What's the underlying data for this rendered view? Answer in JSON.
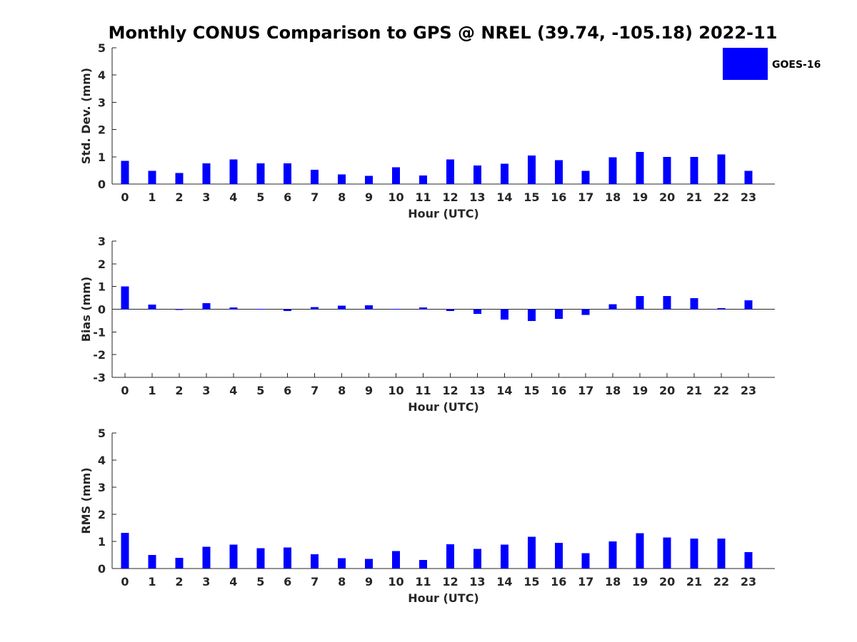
{
  "title": "Monthly CONUS Comparison to GPS @ NREL (39.74, -105.18) 2022-11",
  "legend": {
    "label": "GOES-16",
    "color": "#0000ff",
    "position": "top-right"
  },
  "colors": {
    "bar": "#0000ff",
    "axis": "#262626"
  },
  "chart_data": [
    {
      "type": "bar",
      "ylabel": "Std. Dev. (mm)",
      "xlabel": "Hour (UTC)",
      "ylim": [
        0,
        5
      ],
      "yticks": [
        0,
        1,
        2,
        3,
        4,
        5
      ],
      "categories": [
        "0",
        "1",
        "2",
        "3",
        "4",
        "5",
        "6",
        "7",
        "8",
        "9",
        "10",
        "11",
        "12",
        "13",
        "14",
        "15",
        "16",
        "17",
        "18",
        "19",
        "20",
        "21",
        "22",
        "23"
      ],
      "series": [
        {
          "name": "GOES-16",
          "values": [
            0.85,
            0.48,
            0.4,
            0.76,
            0.9,
            0.76,
            0.76,
            0.53,
            0.35,
            0.3,
            0.62,
            0.32,
            0.9,
            0.68,
            0.74,
            1.05,
            0.88,
            0.48,
            0.98,
            1.18,
            1.0,
            1.0,
            1.08,
            0.48
          ]
        }
      ],
      "grid": false
    },
    {
      "type": "bar",
      "ylabel": "Bias (mm)",
      "xlabel": "Hour (UTC)",
      "ylim": [
        -3,
        3
      ],
      "yticks": [
        -3,
        -2,
        -1,
        0,
        1,
        2,
        3
      ],
      "categories": [
        "0",
        "1",
        "2",
        "3",
        "4",
        "5",
        "6",
        "7",
        "8",
        "9",
        "10",
        "11",
        "12",
        "13",
        "14",
        "15",
        "16",
        "17",
        "18",
        "19",
        "20",
        "21",
        "22",
        "23"
      ],
      "series": [
        {
          "name": "GOES-16",
          "values": [
            1.0,
            0.2,
            -0.02,
            0.26,
            0.08,
            0.01,
            -0.08,
            0.1,
            0.15,
            0.18,
            0.01,
            0.08,
            -0.08,
            -0.2,
            -0.45,
            -0.52,
            -0.42,
            -0.25,
            0.22,
            0.58,
            0.58,
            0.48,
            0.04,
            0.4
          ]
        }
      ],
      "grid": false
    },
    {
      "type": "bar",
      "ylabel": "RMS (mm)",
      "xlabel": "Hour (UTC)",
      "ylim": [
        0,
        5
      ],
      "yticks": [
        0,
        1,
        2,
        3,
        4,
        5
      ],
      "categories": [
        "0",
        "1",
        "2",
        "3",
        "4",
        "5",
        "6",
        "7",
        "8",
        "9",
        "10",
        "11",
        "12",
        "13",
        "14",
        "15",
        "16",
        "17",
        "18",
        "19",
        "20",
        "21",
        "22",
        "23"
      ],
      "series": [
        {
          "name": "GOES-16",
          "values": [
            1.32,
            0.5,
            0.4,
            0.8,
            0.88,
            0.75,
            0.77,
            0.52,
            0.38,
            0.35,
            0.64,
            0.32,
            0.9,
            0.72,
            0.88,
            1.17,
            0.95,
            0.56,
            1.0,
            1.3,
            1.14,
            1.1,
            1.1,
            0.61
          ]
        }
      ],
      "grid": false
    }
  ]
}
